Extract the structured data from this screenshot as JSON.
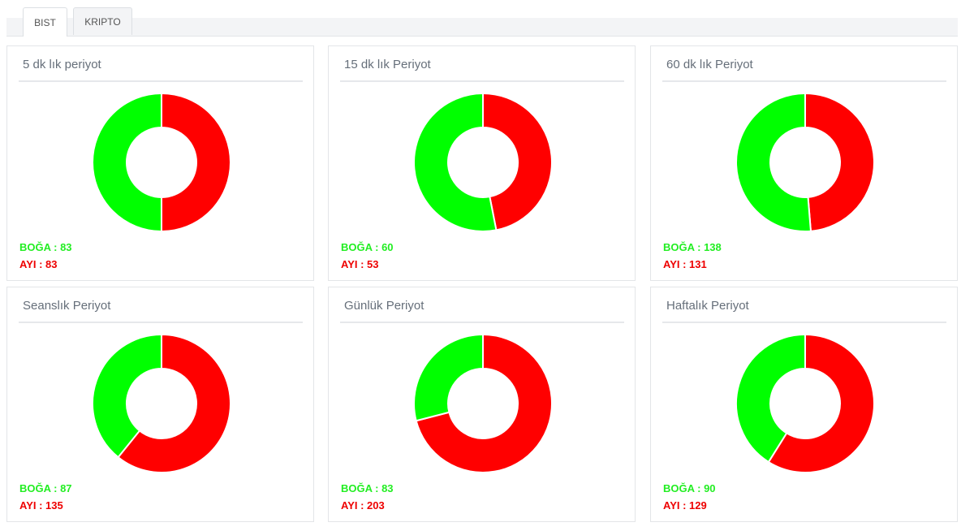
{
  "tabs": [
    {
      "label": "BIST",
      "active": true
    },
    {
      "label": "KRIPTO",
      "active": false
    }
  ],
  "colors": {
    "bull": "#00ff00",
    "bear": "#ff0000",
    "bull_text": "#22ee22",
    "bear_text": "#ee0000"
  },
  "chart_data": [
    {
      "type": "pie",
      "title": "5 dk lık periyot",
      "categories": [
        "AYI",
        "BOĞA"
      ],
      "values": [
        83,
        83
      ],
      "bull_label": "BOĞA : 83",
      "bear_label": "AYI : 83"
    },
    {
      "type": "pie",
      "title": "15 dk lık Periyot",
      "categories": [
        "AYI",
        "BOĞA"
      ],
      "values": [
        53,
        60
      ],
      "bull_label": "BOĞA : 60",
      "bear_label": "AYI : 53"
    },
    {
      "type": "pie",
      "title": "60 dk lık Periyot",
      "categories": [
        "AYI",
        "BOĞA"
      ],
      "values": [
        131,
        138
      ],
      "bull_label": "BOĞA : 138",
      "bear_label": "AYI : 131"
    },
    {
      "type": "pie",
      "title": "Seanslık Periyot",
      "categories": [
        "AYI",
        "BOĞA"
      ],
      "values": [
        135,
        87
      ],
      "bull_label": "BOĞA : 87",
      "bear_label": "AYI : 135"
    },
    {
      "type": "pie",
      "title": "Günlük Periyot",
      "categories": [
        "AYI",
        "BOĞA"
      ],
      "values": [
        203,
        83
      ],
      "bull_label": "BOĞA : 83",
      "bear_label": "AYI : 203"
    },
    {
      "type": "pie",
      "title": "Haftalık Periyot",
      "categories": [
        "AYI",
        "BOĞA"
      ],
      "values": [
        129,
        90
      ],
      "bull_label": "BOĞA : 90",
      "bear_label": "AYI : 129"
    }
  ]
}
